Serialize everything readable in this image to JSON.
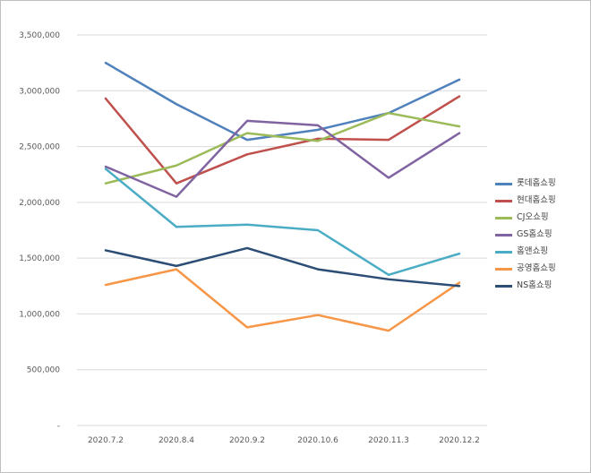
{
  "window": {
    "background": "#ffffff",
    "border_color": "#bfbfbf"
  },
  "chart_data": {
    "type": "line",
    "title": "",
    "xlabel": "",
    "ylabel": "",
    "categories": [
      "2020.7.2",
      "2020.8.4",
      "2020.9.2",
      "2020.10.6",
      "2020.11.3",
      "2020.12.2"
    ],
    "series": [
      {
        "name": "롯데홈쇼핑",
        "color": "#4F81BD",
        "values": [
          3250000,
          2880000,
          2560000,
          2650000,
          2800000,
          3100000
        ]
      },
      {
        "name": "현대홈쇼핑",
        "color": "#C0504D",
        "values": [
          2930000,
          2170000,
          2430000,
          2570000,
          2560000,
          2950000
        ]
      },
      {
        "name": "CJ오쇼핑",
        "color": "#9BBB59",
        "values": [
          2170000,
          2330000,
          2620000,
          2550000,
          2800000,
          2680000
        ]
      },
      {
        "name": "GS홈쇼핑",
        "color": "#8064A2",
        "values": [
          2320000,
          2050000,
          2730000,
          2690000,
          2220000,
          2620000
        ]
      },
      {
        "name": "홈앤쇼핑",
        "color": "#4BACC6",
        "values": [
          2300000,
          1780000,
          1800000,
          1750000,
          1350000,
          1540000
        ]
      },
      {
        "name": "공영홈쇼핑",
        "color": "#F79646",
        "values": [
          1260000,
          1400000,
          880000,
          990000,
          850000,
          1280000
        ]
      },
      {
        "name": "NS홈쇼핑",
        "color": "#2C4D75",
        "values": [
          1570000,
          1430000,
          1590000,
          1400000,
          1310000,
          1250000
        ]
      }
    ],
    "ylim": [
      0,
      3500000
    ],
    "yticks": [
      {
        "value": 3500000,
        "label": "3,500,000"
      },
      {
        "value": 3000000,
        "label": "3,000,000"
      },
      {
        "value": 2500000,
        "label": "2,500,000"
      },
      {
        "value": 2000000,
        "label": "2,000,000"
      },
      {
        "value": 1500000,
        "label": "1,500,000"
      },
      {
        "value": 1000000,
        "label": "1,000,000"
      },
      {
        "value": 500000,
        "label": "500,000"
      },
      {
        "value": 0,
        "label": "-"
      }
    ],
    "grid": true,
    "grid_color": "#D9D9D9",
    "axis_text_color": "#595959",
    "legend_position": "right",
    "legend_text_color": "#404040",
    "line_width": 2.5
  }
}
